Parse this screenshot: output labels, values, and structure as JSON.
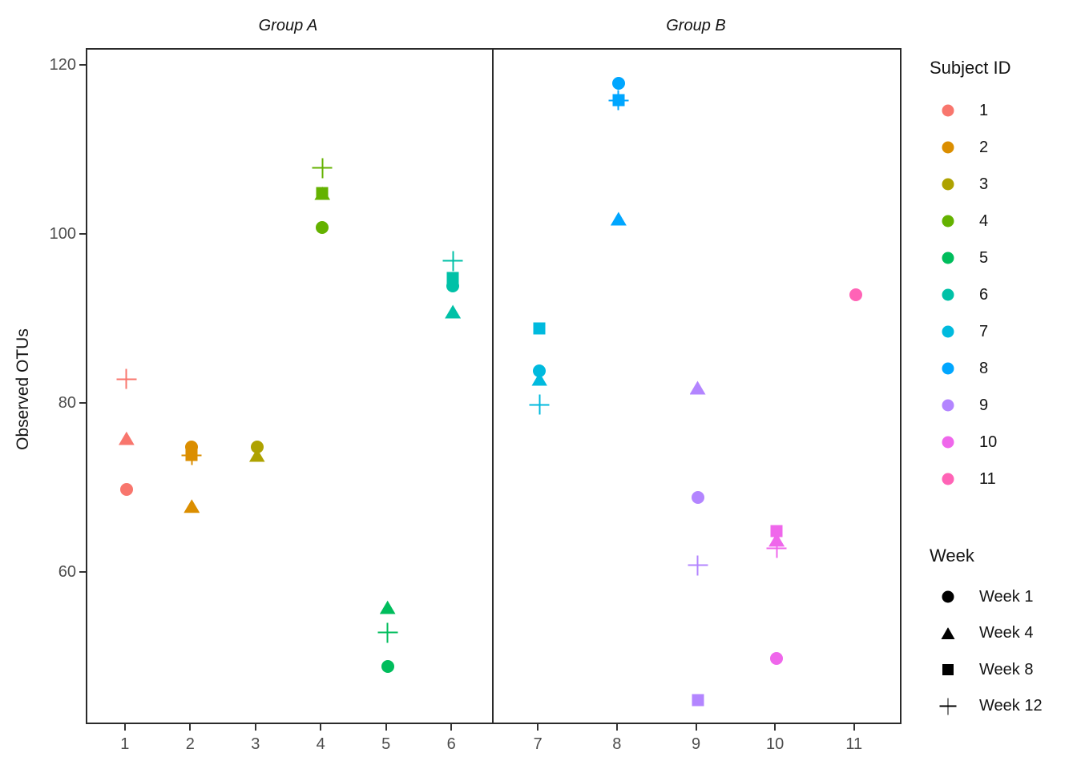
{
  "chart_data": {
    "type": "scatter",
    "ylabel": "Observed OTUs",
    "ylim": [
      42,
      122
    ],
    "yticks": [
      60,
      80,
      100,
      120
    ],
    "grid": "off",
    "legend_position": "right",
    "facets": [
      {
        "label": "Group A",
        "subjects": [
          1,
          2,
          3,
          4,
          5,
          6
        ]
      },
      {
        "label": "Group B",
        "subjects": [
          7,
          8,
          9,
          10,
          11
        ]
      }
    ],
    "weeks": [
      {
        "week": 1,
        "label": "Week 1",
        "shape": "circle"
      },
      {
        "week": 4,
        "label": "Week 4",
        "shape": "triangle"
      },
      {
        "week": 8,
        "label": "Week 8",
        "shape": "square"
      },
      {
        "week": 12,
        "label": "Week 12",
        "shape": "plus"
      }
    ],
    "subject_colors": {
      "1": "#F8766D",
      "2": "#DB8E00",
      "3": "#AEA200",
      "4": "#64B200",
      "5": "#00BD5C",
      "6": "#00C1A7",
      "7": "#00BADE",
      "8": "#00A6FF",
      "9": "#B385FF",
      "10": "#EF67EB",
      "11": "#FF63B6"
    },
    "points": [
      {
        "subject": 1,
        "week": 1,
        "y": 70
      },
      {
        "subject": 1,
        "week": 4,
        "y": 76
      },
      {
        "subject": 1,
        "week": 12,
        "y": 83
      },
      {
        "subject": 2,
        "week": 1,
        "y": 75
      },
      {
        "subject": 2,
        "week": 4,
        "y": 68
      },
      {
        "subject": 2,
        "week": 8,
        "y": 74
      },
      {
        "subject": 2,
        "week": 12,
        "y": 74
      },
      {
        "subject": 3,
        "week": 1,
        "y": 75
      },
      {
        "subject": 3,
        "week": 4,
        "y": 74
      },
      {
        "subject": 4,
        "week": 1,
        "y": 101
      },
      {
        "subject": 4,
        "week": 4,
        "y": 105
      },
      {
        "subject": 4,
        "week": 8,
        "y": 105
      },
      {
        "subject": 4,
        "week": 12,
        "y": 108
      },
      {
        "subject": 5,
        "week": 1,
        "y": 49
      },
      {
        "subject": 5,
        "week": 4,
        "y": 56
      },
      {
        "subject": 5,
        "week": 12,
        "y": 53
      },
      {
        "subject": 6,
        "week": 1,
        "y": 94
      },
      {
        "subject": 6,
        "week": 4,
        "y": 91
      },
      {
        "subject": 6,
        "week": 8,
        "y": 95
      },
      {
        "subject": 6,
        "week": 12,
        "y": 97
      },
      {
        "subject": 7,
        "week": 1,
        "y": 84
      },
      {
        "subject": 7,
        "week": 4,
        "y": 83
      },
      {
        "subject": 7,
        "week": 8,
        "y": 89
      },
      {
        "subject": 7,
        "week": 12,
        "y": 80
      },
      {
        "subject": 8,
        "week": 1,
        "y": 118
      },
      {
        "subject": 8,
        "week": 4,
        "y": 102
      },
      {
        "subject": 8,
        "week": 8,
        "y": 116
      },
      {
        "subject": 8,
        "week": 12,
        "y": 116
      },
      {
        "subject": 9,
        "week": 1,
        "y": 69
      },
      {
        "subject": 9,
        "week": 4,
        "y": 82
      },
      {
        "subject": 9,
        "week": 8,
        "y": 45
      },
      {
        "subject": 9,
        "week": 12,
        "y": 61
      },
      {
        "subject": 10,
        "week": 1,
        "y": 50
      },
      {
        "subject": 10,
        "week": 4,
        "y": 64
      },
      {
        "subject": 10,
        "week": 8,
        "y": 65
      },
      {
        "subject": 10,
        "week": 12,
        "y": 63
      },
      {
        "subject": 11,
        "week": 1,
        "y": 93
      }
    ]
  },
  "legend": {
    "subject_title": "Subject ID",
    "week_title": "Week"
  }
}
